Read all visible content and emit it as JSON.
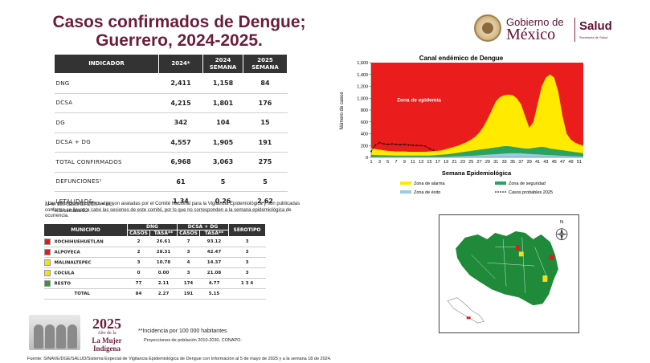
{
  "title": "Casos confirmados de Dengue;",
  "title2": "Guerrero, 2024-2025.",
  "logo": {
    "gobierno": "Gobierno de",
    "mexico": "México",
    "salud": "Salud",
    "secretaria": "Secretaría de Salud"
  },
  "indicators": {
    "headers": [
      "INDICADOR",
      "2024*",
      "2024 SEMANA",
      "2025 SEMANA"
    ],
    "rows": [
      {
        "label": "DNG",
        "a": "2,411",
        "b": "1,158",
        "c": "84"
      },
      {
        "label": "DCSA",
        "a": "4,215",
        "b": "1,801",
        "c": "176"
      },
      {
        "label": "DG",
        "a": "342",
        "b": "104",
        "c": "15"
      },
      {
        "label": "DCSA + DG",
        "a": "4,557",
        "b": "1,905",
        "c": "191"
      },
      {
        "label": "TOTAL CONFIRMADOS",
        "a": "6,968",
        "b": "3,063",
        "c": "275"
      },
      {
        "label": "DEFUNCIONES¹",
        "a": "61",
        "b": "5",
        "c": "5"
      },
      {
        "label": "LETALIDAD&",
        "a": "1.34",
        "b": "0.26",
        "c": "2.62"
      }
    ]
  },
  "notes": {
    "n1": "&Por 100 casos de DCSA + DG.",
    "n2": "* A la semana 52",
    "n3": "¹ Las defunciones confirmadas son avaladas por el Comité Nacional para la Vigilancia Epidemiológica y son publicadas conforme se llevan a cabo las sesiones de este comité, por lo que no corresponden a la semana epidemiológica de ocurrencia."
  },
  "municipios": {
    "h_municipio": "MUNICIPIO",
    "h_dng": "DNG",
    "h_dcsa": "DCSA + DG",
    "h_serotipo": "SEROTIPO",
    "h_casos": "CASOS",
    "h_tasa": "TASA**",
    "rows": [
      {
        "name": "XOCHIHUEHUETLAN",
        "color": "#e01b1b",
        "dc": "2",
        "dt": "26.61",
        "sc": "7",
        "st": "93.12",
        "sero": "3"
      },
      {
        "name": "ALPOYECA",
        "color": "#e01b1b",
        "dc": "2",
        "dt": "28.31",
        "sc": "3",
        "st": "42.47",
        "sero": "3"
      },
      {
        "name": "MALINALTEPEC",
        "color": "#f2e01e",
        "dc": "3",
        "dt": "10.78",
        "sc": "4",
        "st": "14.37",
        "sero": "3"
      },
      {
        "name": "COCULA",
        "color": "#f2e01e",
        "dc": "0",
        "dt": "0.00",
        "sc": "3",
        "st": "21.08",
        "sero": "3"
      },
      {
        "name": "RESTO",
        "color": "#2e9a3a",
        "dc": "77",
        "dt": "2.11",
        "sc": "174",
        "st": "4.77",
        "sero": "1  3  4"
      },
      {
        "name": "TOTAL",
        "color": "",
        "dc": "84",
        "dt": "2.27",
        "sc": "191",
        "st": "5.15",
        "sero": ""
      }
    ]
  },
  "footer": {
    "incidencia": "**Incidencia por 100 000 habitantes",
    "proyecciones": "Proyecciones de población 2010-2030,  CONAPO.",
    "fuente": "Fuente: SINAVE/DGE/SALUD/Sistema Especial de Vigilancia Epidemiológica de Dengue con Información al 5 de mayo de 2025 y a la semana 18 de 2024.",
    "y2025": "2025",
    "ano": "Año de la",
    "mujer": "La Mujer",
    "indigena": "Indígena"
  },
  "chart_data": {
    "type": "area",
    "title": "Canal endémico de Dengue",
    "xlabel": "Semana Epidemiológica",
    "ylabel": "Número de casos",
    "ylim": [
      0,
      1600
    ],
    "yticks": [
      0,
      200,
      400,
      600,
      800,
      1000,
      1200,
      1400,
      1600
    ],
    "x": [
      1,
      2,
      3,
      4,
      5,
      6,
      7,
      8,
      9,
      10,
      11,
      12,
      13,
      14,
      15,
      16,
      17,
      18,
      19,
      20,
      21,
      22,
      23,
      24,
      25,
      26,
      27,
      28,
      29,
      30,
      31,
      32,
      33,
      34,
      35,
      36,
      37,
      38,
      39,
      40,
      41,
      42,
      43,
      44,
      45,
      46,
      47,
      48,
      49,
      50,
      51,
      52
    ],
    "x_ticks": [
      "1",
      "3",
      "5",
      "7",
      "9",
      "11",
      "13",
      "15",
      "17",
      "19",
      "21",
      "23",
      "25",
      "27",
      "29",
      "31",
      "33",
      "35",
      "37",
      "39",
      "41",
      "43",
      "45",
      "47",
      "49",
      "51"
    ],
    "epidemia_label": "Zona de epidemia",
    "series": [
      {
        "name": "Zona de éxito",
        "color": "#9ecae1",
        "values": [
          10,
          10,
          10,
          10,
          10,
          10,
          10,
          10,
          10,
          10,
          10,
          10,
          10,
          10,
          10,
          10,
          10,
          10,
          12,
          15,
          18,
          20,
          22,
          25,
          28,
          30,
          35,
          40,
          45,
          50,
          55,
          60,
          65,
          70,
          70,
          70,
          70,
          65,
          60,
          55,
          50,
          45,
          40,
          38,
          35,
          30,
          28,
          25,
          22,
          20,
          18,
          15
        ]
      },
      {
        "name": "Zona de seguridad",
        "color": "#2ca25f",
        "values": [
          40,
          40,
          38,
          36,
          34,
          32,
          30,
          30,
          30,
          30,
          30,
          30,
          30,
          30,
          30,
          35,
          40,
          45,
          50,
          60,
          70,
          80,
          90,
          100,
          110,
          120,
          130,
          140,
          150,
          160,
          170,
          180,
          190,
          190,
          180,
          170,
          160,
          150,
          150,
          160,
          170,
          180,
          170,
          150,
          140,
          130,
          120,
          110,
          100,
          90,
          80,
          70
        ]
      },
      {
        "name": "Zona de alarma",
        "color": "#ffea00",
        "values": [
          160,
          140,
          130,
          120,
          110,
          105,
          100,
          100,
          100,
          95,
          95,
          95,
          95,
          95,
          100,
          105,
          110,
          120,
          140,
          160,
          180,
          200,
          230,
          260,
          300,
          350,
          420,
          520,
          650,
          800,
          950,
          1020,
          1050,
          1060,
          1050,
          1000,
          900,
          700,
          500,
          600,
          900,
          1200,
          1350,
          1400,
          1350,
          1100,
          700,
          400,
          300,
          250,
          220,
          200
        ]
      },
      {
        "name": "Casos probables 2025",
        "color": "#000000",
        "values": [
          100,
          210,
          250,
          230,
          220,
          230,
          220,
          215,
          220,
          210,
          205,
          200,
          200,
          190,
          150,
          120,
          null,
          null,
          null,
          null,
          null,
          null,
          null,
          null,
          null,
          null,
          null,
          null,
          null,
          null,
          null,
          null,
          null,
          null,
          null,
          null,
          null,
          null,
          null,
          null,
          null,
          null,
          null,
          null,
          null,
          null,
          null,
          null,
          null,
          null,
          null,
          null
        ]
      }
    ],
    "legend": [
      "Zona de alarma",
      "Zona de seguridad",
      "Zona de éxito",
      "Casos probables 2025"
    ],
    "legend_placement": "bottom"
  },
  "map": {
    "north": "N"
  }
}
